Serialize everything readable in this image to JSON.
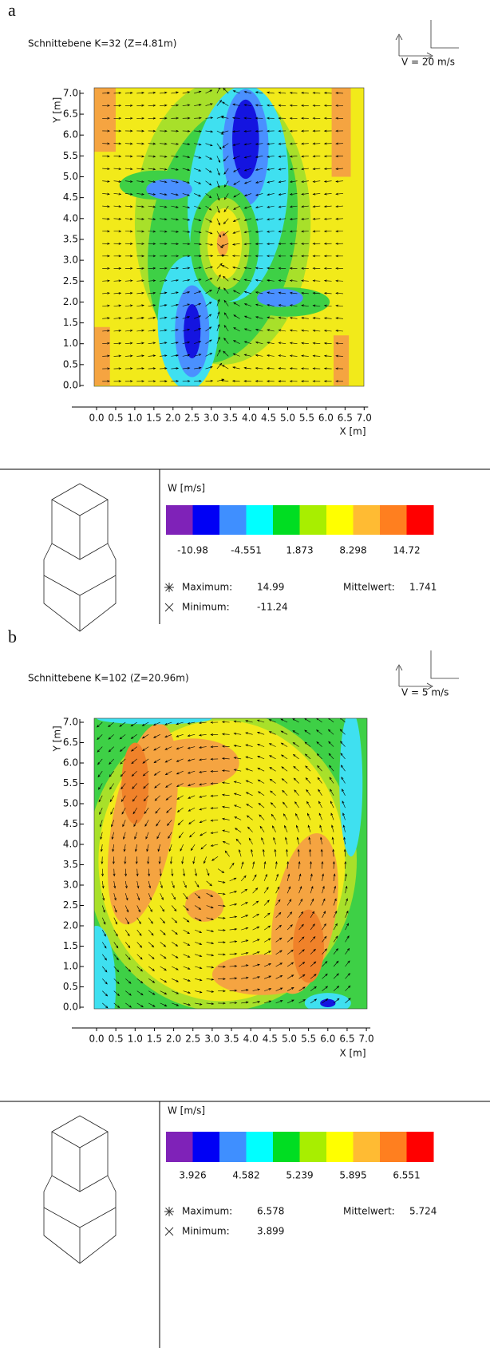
{
  "panels": [
    {
      "label": "a",
      "title": "Schnittebene K=32 (Z=4.81m)",
      "scale_label": "V = 20 m/s",
      "y_axis_label": "Y [m]",
      "x_axis_label": "X [m]",
      "xticks": [
        "0.0",
        "0.5",
        "1.0",
        "1.5",
        "2.0",
        "2.5",
        "3.0",
        "3.5",
        "4.0",
        "4.5",
        "5.0",
        "5.5",
        "6.0",
        "6.5",
        "7.0"
      ],
      "yticks": [
        "0.0",
        "0.5",
        "1.0",
        "1.5",
        "2.0",
        "2.5",
        "3.0",
        "3.5",
        "4.0",
        "4.5",
        "5.0",
        "5.5",
        "6.0",
        "6.5",
        "7.0"
      ],
      "legend_title": "W [m/s]",
      "colorbar_colors": [
        "#7f22b8",
        "#0000f5",
        "#3f8fff",
        "#00ffff",
        "#00dd22",
        "#a8ee00",
        "#ffff00",
        "#ffbb33",
        "#ff7f1f",
        "#ff0000"
      ],
      "colorbar_labels": [
        "-10.98",
        "-4.551",
        "1.873",
        "8.298",
        "14.72"
      ],
      "maximum_label": "Maximum:",
      "maximum": "14.99",
      "mean_label": "Mittelwert:",
      "mean": "1.741",
      "minimum_label": "Minimum:",
      "minimum": "-11.24"
    },
    {
      "label": "b",
      "title": "Schnittebene K=102 (Z=20.96m)",
      "scale_label": "V = 5 m/s",
      "y_axis_label": "Y [m]",
      "x_axis_label": "X [m]",
      "xticks": [
        "0.0",
        "0.5",
        "1.0",
        "1.5",
        "2.0",
        "2.5",
        "3.0",
        "3.5",
        "4.0",
        "4.5",
        "5.0",
        "5.5",
        "6.0",
        "6.5",
        "7.0"
      ],
      "yticks": [
        "0.0",
        "0.5",
        "1.0",
        "1.5",
        "2.0",
        "2.5",
        "3.0",
        "3.5",
        "4.0",
        "4.5",
        "5.0",
        "5.5",
        "6.0",
        "6.5",
        "7.0"
      ],
      "legend_title": "W [m/s]",
      "colorbar_colors": [
        "#7f22b8",
        "#0000f5",
        "#3f8fff",
        "#00ffff",
        "#00dd22",
        "#a8ee00",
        "#ffff00",
        "#ffbb33",
        "#ff7f1f",
        "#ff0000"
      ],
      "colorbar_labels": [
        "3.926",
        "4.582",
        "5.239",
        "5.895",
        "6.551"
      ],
      "maximum_label": "Maximum:",
      "maximum": "6.578",
      "mean_label": "Mittelwert:",
      "mean": "5.724",
      "minimum_label": "Minimum:",
      "minimum": "3.899"
    }
  ]
}
